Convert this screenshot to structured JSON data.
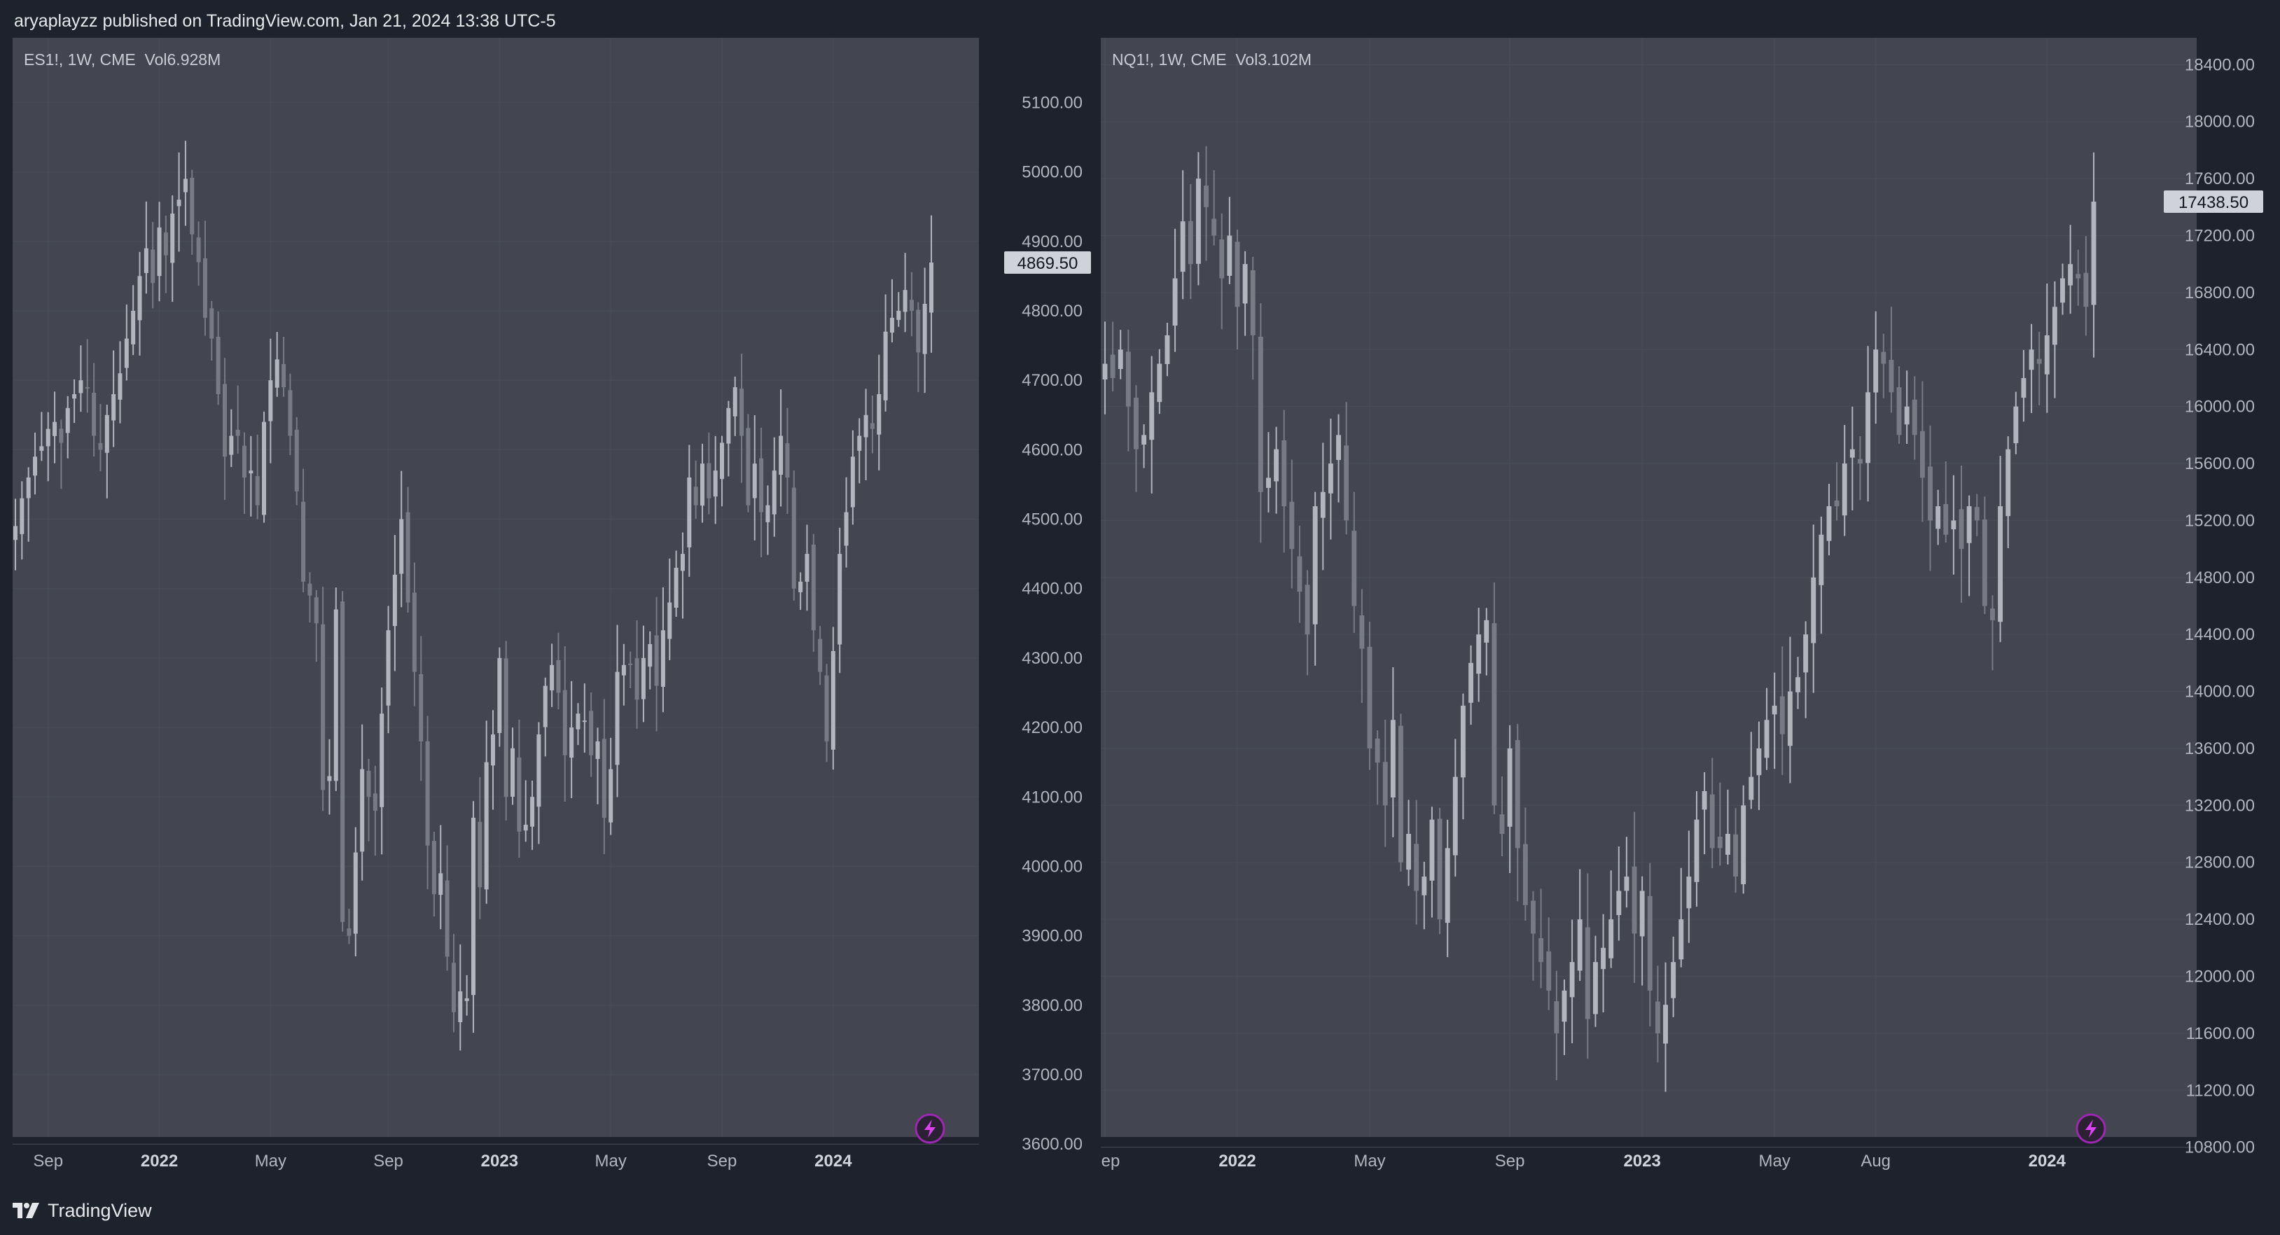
{
  "header": {
    "published_text": "aryaplayzz published on TradingView.com, Jan 21, 2024 13:38 UTC-5"
  },
  "footer": {
    "brand": "TradingView"
  },
  "colors": {
    "background": "#1e222d",
    "pane": "#434651",
    "grid": "#4a4d58",
    "candle_up": "#b2b5be",
    "candle_down": "#787b86",
    "last_price_bg": "#cfd2d9",
    "last_price_text": "#131722",
    "bolt": "#9c27b0"
  },
  "chart_data": [
    {
      "type": "candlestick",
      "symbol_legend": "ES1!, 1W, CME  Vol6.928M",
      "ylim": [
        3575,
        5175
      ],
      "y_ticks": [
        "5100.00",
        "5000.00",
        "4900.00",
        "4800.00",
        "4700.00",
        "4600.00",
        "4500.00",
        "4400.00",
        "4300.00",
        "4200.00",
        "4100.00",
        "4000.00",
        "3900.00",
        "3800.00",
        "3700.00",
        "3600.00"
      ],
      "x_ticks": [
        {
          "label": "Sep",
          "bold": false,
          "bar": 5
        },
        {
          "label": "2022",
          "bold": true,
          "bar": 22
        },
        {
          "label": "May",
          "bold": false,
          "bar": 39
        },
        {
          "label": "Sep",
          "bold": false,
          "bar": 57
        },
        {
          "label": "2023",
          "bold": true,
          "bar": 74
        },
        {
          "label": "May",
          "bold": false,
          "bar": 91
        },
        {
          "label": "Sep",
          "bold": false,
          "bar": 108
        },
        {
          "label": "2024",
          "bold": true,
          "bar": 125
        }
      ],
      "last_price": "4869.50",
      "series": {
        "close": [
          4490,
          4530,
          4560,
          4590,
          4605,
          4630,
          4640,
          4610,
          4660,
          4680,
          4700,
          4690,
          4620,
          4600,
          4650,
          4680,
          4710,
          4760,
          4800,
          4850,
          4890,
          4840,
          4920,
          4880,
          4940,
          4960,
          4990,
          4910,
          4870,
          4790,
          4760,
          4680,
          4590,
          4620,
          4620,
          4560,
          4570,
          4520,
          4640,
          4700,
          4730,
          4690,
          4620,
          4540,
          4410,
          4390,
          4350,
          4110,
          4130,
          4370,
          3920,
          3900,
          4020,
          4140,
          4100,
          4080,
          4220,
          4340,
          4420,
          4500,
          4380,
          4280,
          4180,
          4030,
          3960,
          3990,
          3870,
          3790,
          3820,
          3810,
          4070,
          3970,
          4150,
          4190,
          4300,
          4100,
          4170,
          4050,
          4060,
          4100,
          4190,
          4260,
          4290,
          4250,
          4160,
          4200,
          4220,
          4210,
          4160,
          4180,
          4070,
          4140,
          4280,
          4290,
          4290,
          4240,
          4300,
          4320,
          4260,
          4340,
          4380,
          4430,
          4450,
          4560,
          4520,
          4580,
          4530,
          4570,
          4610,
          4660,
          4690,
          4620,
          4520,
          4580,
          4510,
          4520,
          4570,
          4620,
          4560,
          4400,
          4410,
          4450,
          4340,
          4280,
          4180,
          4310,
          4450,
          4510,
          4590,
          4620,
          4650,
          4630,
          4680,
          4770,
          4790,
          4800,
          4830,
          4800,
          4740,
          4810,
          4869.5
        ]
      }
    },
    {
      "type": "candlestick",
      "symbol_legend": "NQ1!, 1W, CME  Vol3.102M",
      "ylim": [
        10700,
        18500
      ],
      "y_ticks": [
        "18400.00",
        "18000.00",
        "17600.00",
        "17200.00",
        "16800.00",
        "16400.00",
        "16000.00",
        "15600.00",
        "15200.00",
        "14800.00",
        "14400.00",
        "14000.00",
        "13600.00",
        "13200.00",
        "12800.00",
        "12400.00",
        "12000.00",
        "11600.00",
        "11200.00",
        "10800.00"
      ],
      "x_ticks": [
        {
          "label": "Sep",
          "bold": false,
          "bar": 0
        },
        {
          "label": "2022",
          "bold": true,
          "bar": 17
        },
        {
          "label": "May",
          "bold": false,
          "bar": 34
        },
        {
          "label": "Sep",
          "bold": false,
          "bar": 52
        },
        {
          "label": "2023",
          "bold": true,
          "bar": 69
        },
        {
          "label": "May",
          "bold": false,
          "bar": 86
        },
        {
          "label": "Aug",
          "bold": false,
          "bar": 99
        },
        {
          "label": "2024",
          "bold": true,
          "bar": 121
        }
      ],
      "last_price": "17438.50",
      "series": {
        "close": [
          16300,
          16200,
          16400,
          16000,
          15700,
          15800,
          16100,
          16300,
          16500,
          16900,
          17300,
          17000,
          17600,
          17400,
          17200,
          16900,
          17200,
          16700,
          17000,
          16500,
          15400,
          15500,
          15700,
          15300,
          15000,
          14700,
          14400,
          15300,
          15400,
          15600,
          15800,
          15200,
          14600,
          14300,
          13600,
          13500,
          13200,
          13800,
          12800,
          13000,
          12600,
          12700,
          13100,
          12400,
          12900,
          13400,
          13900,
          14200,
          14400,
          14500,
          13200,
          13000,
          13600,
          12900,
          12500,
          12300,
          12100,
          11900,
          11600,
          11900,
          12100,
          12400,
          11700,
          12100,
          12200,
          12400,
          12600,
          12700,
          12300,
          12600,
          11900,
          11600,
          11800,
          12100,
          12400,
          12700,
          13100,
          13300,
          12900,
          12900,
          13000,
          12700,
          13200,
          13400,
          13600,
          13800,
          13900,
          13700,
          14000,
          14100,
          14400,
          14800,
          15100,
          15300,
          15300,
          15600,
          15700,
          15600,
          16100,
          16400,
          16300,
          16100,
          15800,
          16000,
          15800,
          15500,
          15200,
          15300,
          15100,
          15200,
          15000,
          15300,
          15200,
          14600,
          14500,
          15300,
          15700,
          16000,
          16200,
          16400,
          16300,
          16500,
          16700,
          16900,
          17000,
          16900,
          16700,
          17438.5
        ]
      }
    }
  ]
}
